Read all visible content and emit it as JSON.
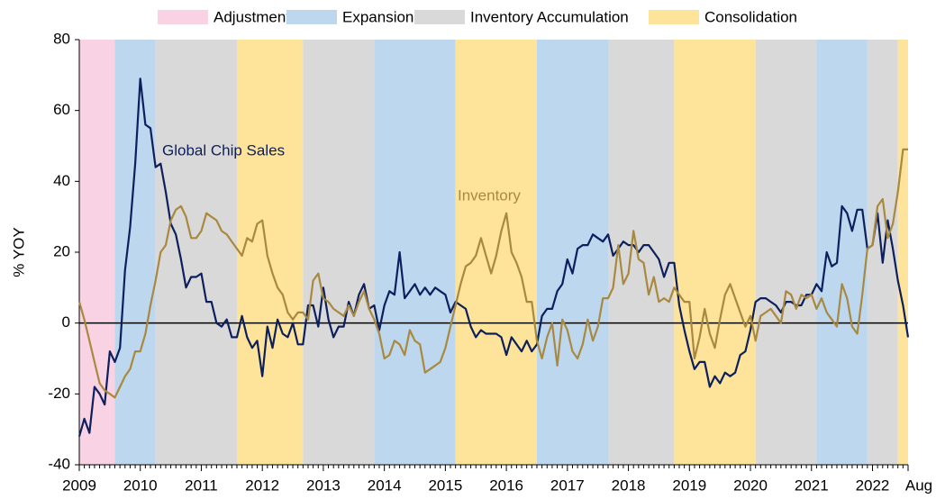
{
  "chart_data": {
    "type": "line",
    "ylabel": "% YOY",
    "ylim": [
      -40,
      80
    ],
    "yticks": [
      -40,
      -20,
      0,
      20,
      40,
      60,
      80
    ],
    "legend": [
      {
        "name": "Adjustment",
        "color": "#f9d3e3"
      },
      {
        "name": "Expansion",
        "color": "#bdd7ee"
      },
      {
        "name": "Inventory Accumulation",
        "color": "#d9d9d9"
      },
      {
        "name": "Consolidation",
        "color": "#fde49a"
      }
    ],
    "phases": [
      {
        "legend": 0,
        "start": 0,
        "end": 7
      },
      {
        "legend": 1,
        "start": 7,
        "end": 15
      },
      {
        "legend": 2,
        "start": 15,
        "end": 31
      },
      {
        "legend": 3,
        "start": 31,
        "end": 44
      },
      {
        "legend": 2,
        "start": 44,
        "end": 58
      },
      {
        "legend": 1,
        "start": 58,
        "end": 74
      },
      {
        "legend": 3,
        "start": 74,
        "end": 90
      },
      {
        "legend": 1,
        "start": 90,
        "end": 104
      },
      {
        "legend": 2,
        "start": 104,
        "end": 117
      },
      {
        "legend": 3,
        "start": 117,
        "end": 133
      },
      {
        "legend": 2,
        "start": 133,
        "end": 145
      },
      {
        "legend": 1,
        "start": 145,
        "end": 155
      },
      {
        "legend": 2,
        "start": 155,
        "end": 161
      },
      {
        "legend": 3,
        "start": 161,
        "end": 163
      }
    ],
    "categories": [
      "2009",
      null,
      null,
      null,
      null,
      null,
      null,
      null,
      null,
      null,
      null,
      null,
      "2010",
      null,
      null,
      null,
      null,
      null,
      null,
      null,
      null,
      null,
      null,
      null,
      "2011",
      null,
      null,
      null,
      null,
      null,
      null,
      null,
      null,
      null,
      null,
      null,
      "2012",
      null,
      null,
      null,
      null,
      null,
      null,
      null,
      null,
      null,
      null,
      null,
      "2013",
      null,
      null,
      null,
      null,
      null,
      null,
      null,
      null,
      null,
      null,
      null,
      "2014",
      null,
      null,
      null,
      null,
      null,
      null,
      null,
      null,
      null,
      null,
      null,
      "2015",
      null,
      null,
      null,
      null,
      null,
      null,
      null,
      null,
      null,
      null,
      null,
      "2016",
      null,
      null,
      null,
      null,
      null,
      null,
      null,
      null,
      null,
      null,
      null,
      "2017",
      null,
      null,
      null,
      null,
      null,
      null,
      null,
      null,
      null,
      null,
      null,
      "2018",
      null,
      null,
      null,
      null,
      null,
      null,
      null,
      null,
      null,
      null,
      null,
      "2019",
      null,
      null,
      null,
      null,
      null,
      null,
      null,
      null,
      null,
      null,
      null,
      "2020",
      null,
      null,
      null,
      null,
      null,
      null,
      null,
      null,
      null,
      null,
      null,
      "2021",
      null,
      null,
      null,
      null,
      null,
      null,
      null,
      null,
      null,
      null,
      null,
      "2022",
      null,
      null,
      null,
      null,
      null,
      null,
      "Aug"
    ],
    "series": [
      {
        "name": "Global Chip Sales",
        "color": "#0d1f5c",
        "values": [
          -32,
          -27,
          -31,
          -18,
          -20,
          -23,
          -8,
          -11,
          -7,
          15,
          27,
          45,
          69,
          56,
          55,
          44,
          45,
          37,
          28,
          25,
          18,
          10,
          13,
          13,
          14,
          6,
          6,
          0,
          -1,
          1,
          -4,
          -4,
          2,
          -4,
          -7,
          -5,
          -15,
          -1,
          -7,
          1,
          -3,
          -4,
          0,
          -6,
          -6,
          5,
          5,
          -1,
          10,
          1,
          -4,
          -1,
          -1,
          6,
          2,
          8,
          11,
          4,
          5,
          -2,
          5,
          9,
          8,
          20,
          7,
          9,
          11,
          8,
          10,
          8,
          10,
          9,
          8,
          3,
          6,
          5,
          4,
          -1,
          -4,
          -2,
          -3,
          -3,
          -3,
          -4,
          -9,
          -4,
          -6,
          -8,
          -5,
          -8,
          -6,
          2,
          4,
          4,
          9,
          11,
          18,
          14,
          21,
          22,
          22,
          25,
          24,
          23,
          25,
          19,
          21,
          23,
          22,
          22,
          20,
          22,
          22,
          20,
          18,
          13,
          17,
          17,
          5,
          -2,
          -8,
          -13,
          -11,
          -11,
          -18,
          -15,
          -17,
          -14,
          -15,
          -14,
          -9,
          -8,
          -2,
          6,
          7,
          7,
          6,
          5,
          3,
          6,
          6,
          5,
          5,
          8,
          8,
          11,
          9,
          20,
          16,
          17,
          33,
          31,
          26,
          32,
          32,
          21,
          22,
          31,
          17,
          29,
          21,
          12,
          5,
          -4
        ]
      },
      {
        "name": "Inventory",
        "color": "#a8893f",
        "values": [
          6,
          1,
          -5,
          -11,
          -17,
          -19,
          -20,
          -21,
          -18,
          -15,
          -13,
          -8,
          -8,
          -3,
          5,
          12,
          20,
          22,
          29,
          32,
          33,
          30,
          24,
          24,
          26,
          31,
          30,
          29,
          26,
          25,
          23,
          21,
          19,
          24,
          23,
          28,
          29,
          19,
          14,
          10,
          8,
          3,
          1,
          3,
          3,
          1,
          12,
          14,
          7,
          6,
          4,
          3,
          2,
          5,
          2,
          6,
          9,
          4,
          1,
          -3,
          -10,
          -9,
          -5,
          -6,
          -9,
          -2,
          -5,
          -6,
          -14,
          -13,
          -12,
          -11,
          -7,
          -1,
          5,
          11,
          16,
          17,
          19,
          24,
          19,
          14,
          19,
          26,
          31,
          20,
          17,
          13,
          6,
          6,
          -5,
          -10,
          -4,
          0,
          -12,
          1,
          -2,
          -8,
          -10,
          -6,
          1,
          -5,
          -1,
          7,
          7,
          10,
          22,
          11,
          14,
          26,
          18,
          17,
          8,
          13,
          6,
          7,
          6,
          10,
          8,
          6,
          6,
          -10,
          -4,
          4,
          -3,
          -7,
          1,
          8,
          11,
          7,
          3,
          -1,
          2,
          -5,
          2,
          3,
          4,
          2,
          0,
          9,
          8,
          4,
          8,
          7,
          8,
          4,
          7,
          3,
          1,
          -1,
          11,
          7,
          -1,
          -3,
          8,
          21,
          22,
          33,
          35,
          24,
          28,
          37,
          49,
          49
        ]
      }
    ]
  }
}
